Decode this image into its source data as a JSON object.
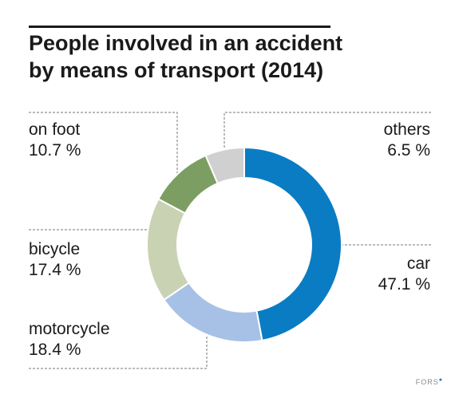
{
  "chart_data": {
    "type": "pie",
    "variant": "donut",
    "title_lines": [
      "People involved in an accident",
      "by means of transport (2014)"
    ],
    "slices": [
      {
        "label": "car",
        "value": 47.1,
        "display": "47.1 %",
        "color": "#0a7cc4"
      },
      {
        "label": "motorcycle",
        "value": 18.4,
        "display": "18.4 %",
        "color": "#a7c1e6"
      },
      {
        "label": "bicycle",
        "value": 17.4,
        "display": "17.4 %",
        "color": "#c9d3b4"
      },
      {
        "label": "on foot",
        "value": 10.7,
        "display": "10.7 %",
        "color": "#7d9e62"
      },
      {
        "label": "others",
        "value": 6.5,
        "display": "6.5 %",
        "color": "#d0d0d0"
      }
    ],
    "start": "12 o'clock",
    "direction": "clockwise",
    "legend": "none"
  },
  "footer": {
    "brand": "FORS"
  }
}
